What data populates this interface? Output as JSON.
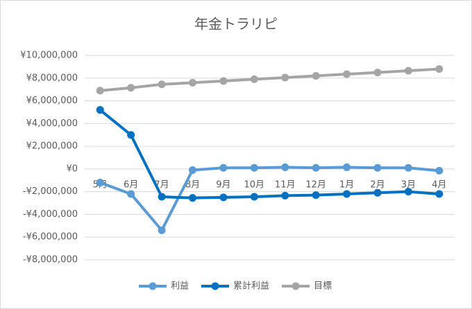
{
  "chart_data": {
    "type": "line",
    "title": "年金トラリピ",
    "categories": [
      "5月",
      "6月",
      "7月",
      "8月",
      "9月",
      "10月",
      "11月",
      "12月",
      "1月",
      "2月",
      "3月",
      "4月"
    ],
    "series": [
      {
        "name": "利益",
        "color": "#5b9bd5",
        "values": [
          -1200000,
          -2200000,
          -5400000,
          -100000,
          100000,
          100000,
          150000,
          100000,
          150000,
          100000,
          100000,
          -150000
        ]
      },
      {
        "name": "累計利益",
        "color": "#0070c0",
        "values": [
          5200000,
          3000000,
          -2450000,
          -2550000,
          -2500000,
          -2450000,
          -2350000,
          -2300000,
          -2200000,
          -2100000,
          -2000000,
          -2200000
        ]
      },
      {
        "name": "目標",
        "color": "#a5a5a5",
        "values": [
          6900000,
          7150000,
          7450000,
          7600000,
          7750000,
          7900000,
          8050000,
          8200000,
          8350000,
          8500000,
          8650000,
          8800000
        ]
      }
    ],
    "ylim": [
      -8000000,
      10000000
    ],
    "yticks": [
      {
        "value": -8000000,
        "label": "-¥8,000,000"
      },
      {
        "value": -6000000,
        "label": "-¥6,000,000"
      },
      {
        "value": -4000000,
        "label": "-¥4,000,000"
      },
      {
        "value": -2000000,
        "label": "-¥2,000,000"
      },
      {
        "value": 0,
        "label": "¥0"
      },
      {
        "value": 2000000,
        "label": "¥2,000,000"
      },
      {
        "value": 4000000,
        "label": "¥4,000,000"
      },
      {
        "value": 6000000,
        "label": "¥6,000,000"
      },
      {
        "value": 8000000,
        "label": "¥8,000,000"
      },
      {
        "value": 10000000,
        "label": "¥10,000,000"
      }
    ],
    "grid": true,
    "legend": "bottom"
  }
}
